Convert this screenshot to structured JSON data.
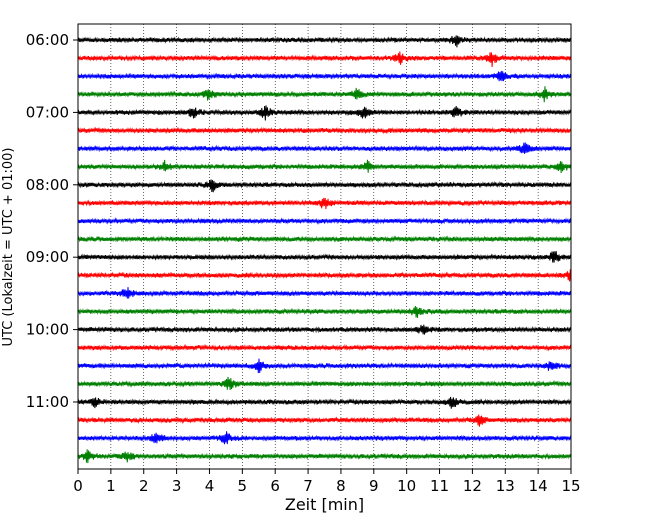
{
  "chart_data": {
    "type": "line",
    "title": "",
    "xlabel": "Zeit  [min]",
    "ylabel": "UTC (Lokalzeit = UTC + 01:00)",
    "xlim": [
      0,
      15
    ],
    "x_ticks": [
      "0",
      "1",
      "2",
      "3",
      "4",
      "5",
      "6",
      "7",
      "8",
      "9",
      "10",
      "11",
      "12",
      "13",
      "14",
      "15"
    ],
    "y_tick_labels": [
      "06:00",
      "07:00",
      "08:00",
      "09:00",
      "10:00",
      "11:00"
    ],
    "trace_start_times": [
      "06:00",
      "06:15",
      "06:30",
      "06:45",
      "07:00",
      "07:15",
      "07:30",
      "07:45",
      "08:00",
      "08:15",
      "08:30",
      "08:45",
      "09:00",
      "09:15",
      "09:30",
      "09:45",
      "10:00",
      "10:15",
      "10:30",
      "10:45",
      "11:00",
      "11:15",
      "11:30",
      "11:45"
    ],
    "trace_colors": [
      "#000000",
      "#ff0000",
      "#0000ff",
      "#008000"
    ],
    "grid": true,
    "events": [
      {
        "trace": "06:00",
        "minute": 11.5
      },
      {
        "trace": "06:15",
        "minute": 9.8
      },
      {
        "trace": "06:15",
        "minute": 12.6
      },
      {
        "trace": "06:30",
        "minute": 12.9
      },
      {
        "trace": "06:45",
        "minute": 4.0
      },
      {
        "trace": "06:45",
        "minute": 14.2
      },
      {
        "trace": "06:45",
        "minute": 8.5
      },
      {
        "trace": "07:00",
        "minute": 11.5
      },
      {
        "trace": "07:00",
        "minute": 3.5
      },
      {
        "trace": "07:00",
        "minute": 5.7
      },
      {
        "trace": "07:00",
        "minute": 8.7
      },
      {
        "trace": "07:30",
        "minute": 13.6
      },
      {
        "trace": "07:45",
        "minute": 2.65
      },
      {
        "trace": "07:45",
        "minute": 8.8
      },
      {
        "trace": "07:45",
        "minute": 14.7
      },
      {
        "trace": "08:00",
        "minute": 4.1
      },
      {
        "trace": "08:15",
        "minute": 7.5
      },
      {
        "trace": "09:00",
        "minute": 14.5
      },
      {
        "trace": "09:15",
        "minute": 15.0
      },
      {
        "trace": "09:30",
        "minute": 1.5
      },
      {
        "trace": "09:45",
        "minute": 10.3
      },
      {
        "trace": "10:00",
        "minute": 10.5
      },
      {
        "trace": "10:30",
        "minute": 14.4
      },
      {
        "trace": "10:30",
        "minute": 5.5
      },
      {
        "trace": "10:45",
        "minute": 4.6
      },
      {
        "trace": "11:00",
        "minute": 11.4
      },
      {
        "trace": "11:00",
        "minute": 0.5
      },
      {
        "trace": "11:15",
        "minute": 12.2
      },
      {
        "trace": "11:30",
        "minute": 2.4
      },
      {
        "trace": "11:30",
        "minute": 4.5
      },
      {
        "trace": "11:45",
        "minute": 1.5
      },
      {
        "trace": "11:45",
        "minute": 0.3
      }
    ]
  }
}
